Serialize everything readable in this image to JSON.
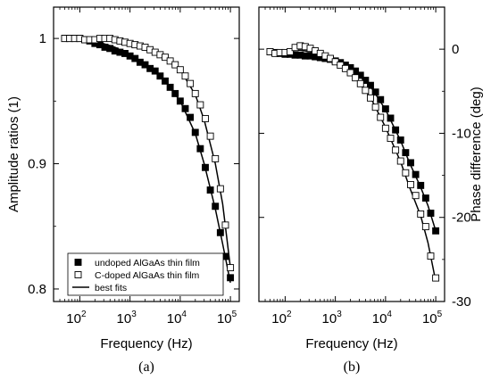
{
  "chart_data": [
    {
      "type": "scatter",
      "panel_label": "(a)",
      "xlabel": "Frequency (Hz)",
      "ylabel": "Amplitude ratios (1)",
      "x_scale": "log",
      "xlim": [
        30,
        150000
      ],
      "ylim": [
        0.79,
        1.025
      ],
      "x_ticks": [
        {
          "base": "10",
          "exp": "2"
        },
        {
          "base": "10",
          "exp": "3"
        },
        {
          "base": "10",
          "exp": "4"
        },
        {
          "base": "10",
          "exp": "5"
        }
      ],
      "y_ticks": [
        "0.8",
        "0.9",
        "1"
      ],
      "legend": {
        "position": "bottom-left",
        "entries": [
          "undoped AlGaAs thin film",
          "C-doped AlGaAs thin film",
          "best fits"
        ]
      },
      "series": [
        {
          "name": "undoped AlGaAs thin film",
          "marker": "filled-square",
          "x": [
            50,
            63,
            79,
            100,
            126,
            158,
            200,
            251,
            316,
            398,
            501,
            631,
            794,
            1000,
            1259,
            1585,
            1995,
            2512,
            3162,
            3981,
            5012,
            6310,
            7943,
            10000,
            12589,
            15849,
            19953,
            25119,
            31623,
            39811,
            50119,
            63096,
            79433,
            100000
          ],
          "y": [
            1.0,
            1.0,
            1.0,
            1.0,
            0.999,
            0.998,
            0.996,
            0.995,
            0.993,
            0.992,
            0.99,
            0.989,
            0.988,
            0.986,
            0.984,
            0.981,
            0.979,
            0.976,
            0.974,
            0.97,
            0.966,
            0.961,
            0.956,
            0.95,
            0.944,
            0.937,
            0.925,
            0.912,
            0.897,
            0.879,
            0.866,
            0.845,
            0.826,
            0.809
          ]
        },
        {
          "name": "C-doped AlGaAs thin film",
          "marker": "open-square",
          "x": [
            50,
            63,
            79,
            100,
            126,
            158,
            200,
            251,
            316,
            398,
            501,
            631,
            794,
            1000,
            1259,
            1585,
            1995,
            2512,
            3162,
            3981,
            5012,
            6310,
            7943,
            10000,
            12589,
            15849,
            19953,
            25119,
            31623,
            39811,
            50119,
            63096,
            79433,
            100000
          ],
          "y": [
            1.0,
            1.0,
            1.0,
            1.0,
            0.999,
            0.999,
            0.999,
            1.0,
            1.0,
            1.0,
            0.999,
            0.998,
            0.997,
            0.996,
            0.995,
            0.994,
            0.993,
            0.991,
            0.989,
            0.987,
            0.985,
            0.982,
            0.979,
            0.975,
            0.97,
            0.964,
            0.956,
            0.947,
            0.936,
            0.922,
            0.904,
            0.88,
            0.851,
            0.817
          ]
        },
        {
          "name": "best fits",
          "marker": "line",
          "x": [
            50,
            100,
            200,
            500,
            1000,
            2000,
            5000,
            10000,
            20000,
            30000,
            50000,
            70000,
            100000
          ],
          "y": [
            1.0,
            0.999,
            0.998,
            0.993,
            0.987,
            0.98,
            0.966,
            0.95,
            0.924,
            0.9,
            0.864,
            0.836,
            0.805
          ]
        },
        {
          "name": "best fits",
          "marker": "line",
          "x": [
            50,
            100,
            200,
            500,
            1000,
            2000,
            5000,
            10000,
            20000,
            30000,
            50000,
            70000,
            100000
          ],
          "y": [
            1.0,
            1.0,
            0.999,
            0.998,
            0.996,
            0.992,
            0.985,
            0.975,
            0.955,
            0.935,
            0.9,
            0.868,
            0.817
          ]
        }
      ]
    },
    {
      "type": "scatter",
      "panel_label": "(b)",
      "xlabel": "Frequency (Hz)",
      "ylabel": "Phase difference (deg)",
      "x_scale": "log",
      "xlim": [
        30,
        150000
      ],
      "ylim": [
        -30,
        5
      ],
      "x_ticks": [
        {
          "base": "10",
          "exp": "2"
        },
        {
          "base": "10",
          "exp": "3"
        },
        {
          "base": "10",
          "exp": "4"
        },
        {
          "base": "10",
          "exp": "5"
        }
      ],
      "y_ticks": [
        "0",
        "-10",
        "-20",
        "-30"
      ],
      "series": [
        {
          "name": "undoped AlGaAs thin film",
          "marker": "filled-square",
          "x": [
            50,
            63,
            79,
            100,
            126,
            158,
            200,
            251,
            316,
            398,
            501,
            631,
            794,
            1000,
            1259,
            1585,
            1995,
            2512,
            3162,
            3981,
            5012,
            6310,
            7943,
            10000,
            12589,
            15849,
            19953,
            25119,
            31623,
            39811,
            50119,
            63096,
            79433,
            100000
          ],
          "y": [
            -0.3,
            -0.4,
            -0.5,
            -0.6,
            -0.6,
            -0.7,
            -0.7,
            -0.8,
            -0.8,
            -0.9,
            -1.0,
            -1.1,
            -1.2,
            -1.4,
            -1.6,
            -1.9,
            -2.2,
            -2.6,
            -3.1,
            -3.7,
            -4.3,
            -5.1,
            -6.0,
            -7.1,
            -8.2,
            -9.6,
            -10.8,
            -12.3,
            -13.5,
            -14.9,
            -16.2,
            -17.7,
            -19.5,
            -21.6
          ]
        },
        {
          "name": "C-doped AlGaAs thin film",
          "marker": "open-square",
          "x": [
            50,
            63,
            79,
            100,
            126,
            158,
            200,
            251,
            316,
            398,
            501,
            631,
            794,
            1000,
            1259,
            1585,
            1995,
            2512,
            3162,
            3981,
            5012,
            6310,
            7943,
            10000,
            12589,
            15849,
            19953,
            25119,
            31623,
            39811,
            50119,
            63096,
            79433,
            100000
          ],
          "y": [
            -0.3,
            -0.5,
            -0.4,
            -0.4,
            -0.3,
            0.2,
            0.4,
            0.3,
            0.1,
            -0.2,
            -0.5,
            -0.8,
            -1.1,
            -1.5,
            -1.9,
            -2.3,
            -2.8,
            -3.4,
            -4.1,
            -4.9,
            -5.8,
            -6.9,
            -8.1,
            -9.4,
            -10.6,
            -12.0,
            -13.3,
            -14.7,
            -16.1,
            -17.4,
            -19.6,
            -21.1,
            -24.6,
            -27.2
          ]
        },
        {
          "name": "best fits",
          "marker": "line",
          "x": [
            50,
            100,
            200,
            500,
            1000,
            2000,
            5000,
            10000,
            20000,
            30000,
            50000,
            70000,
            100000
          ],
          "y": [
            -0.3,
            -0.5,
            -0.7,
            -1.0,
            -1.4,
            -2.2,
            -4.4,
            -7.2,
            -10.9,
            -13.5,
            -16.4,
            -18.6,
            -21.6
          ]
        },
        {
          "name": "best fits",
          "marker": "line",
          "x": [
            50,
            100,
            200,
            500,
            1000,
            2000,
            5000,
            10000,
            20000,
            30000,
            50000,
            70000,
            100000
          ],
          "y": [
            -0.3,
            -0.3,
            -0.1,
            -0.5,
            -1.4,
            -2.7,
            -5.7,
            -9.3,
            -13.4,
            -16.4,
            -19.8,
            -23.0,
            -27.6
          ]
        }
      ]
    }
  ]
}
